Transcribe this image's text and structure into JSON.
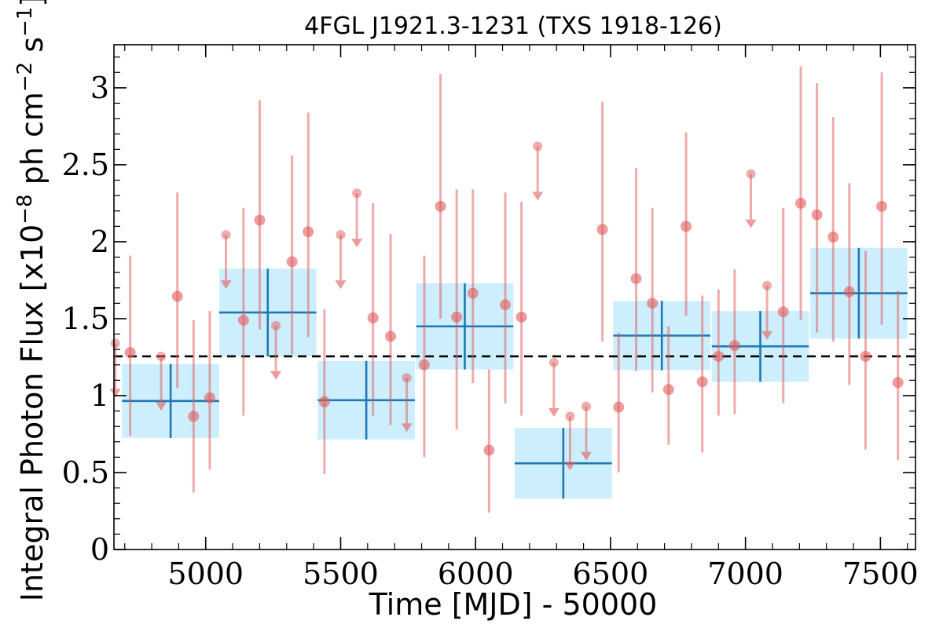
{
  "chart_data": {
    "type": "scatter",
    "title": "4FGL J1921.3-1231 (TXS 1918-126)",
    "xlabel": "Time [MJD] - 50000",
    "ylabel": "Integral Photon Flux [x10",
    "ylabel_exp1": "−8",
    "ylabel_mid": " ph cm",
    "ylabel_exp2": "−2",
    "ylabel_mid2": " s",
    "ylabel_exp3": "−1",
    "ylabel_end": "]",
    "xlim": [
      4660,
      7630
    ],
    "ylim": [
      0,
      3.28
    ],
    "xticks": [
      5000,
      5500,
      6000,
      6500,
      7000,
      7500
    ],
    "yticks": [
      0,
      0.5,
      1,
      1.5,
      2,
      2.5,
      3
    ],
    "ytick_labels": [
      "0",
      "0.5",
      "1",
      "1.5",
      "2",
      "2.5",
      "3"
    ],
    "average_flux": 1.255,
    "colors": {
      "points": "#e05a5a",
      "bins_fill": "#cdeffd",
      "bins_line": "#1f77b4",
      "average_line": "#000000"
    },
    "binned": [
      {
        "x": 4870,
        "xerr": 180,
        "y": 0.965,
        "yerr": 0.24
      },
      {
        "x": 5230,
        "xerr": 180,
        "y": 1.54,
        "yerr": 0.285
      },
      {
        "x": 5595,
        "xerr": 180,
        "y": 0.97,
        "yerr": 0.255
      },
      {
        "x": 5960,
        "xerr": 180,
        "y": 1.45,
        "yerr": 0.28
      },
      {
        "x": 6325,
        "xerr": 180,
        "y": 0.56,
        "yerr": 0.23
      },
      {
        "x": 6690,
        "xerr": 180,
        "y": 1.39,
        "yerr": 0.225
      },
      {
        "x": 7055,
        "xerr": 180,
        "y": 1.32,
        "yerr": 0.23
      },
      {
        "x": 7420,
        "xerr": 180,
        "y": 1.665,
        "yerr": 0.295
      }
    ],
    "points": [
      {
        "x": 4720,
        "y": 1.28,
        "lo": 0.74,
        "hi": 1.91
      },
      {
        "x": 4895,
        "y": 1.645,
        "lo": 1.05,
        "hi": 2.32
      },
      {
        "x": 4955,
        "y": 0.865,
        "lo": 0.37,
        "hi": 1.49
      },
      {
        "x": 5015,
        "y": 0.985,
        "lo": 0.52,
        "hi": 1.55
      },
      {
        "x": 5140,
        "y": 1.49,
        "lo": 0.87,
        "hi": 2.22
      },
      {
        "x": 5200,
        "y": 2.14,
        "lo": 1.43,
        "hi": 2.92
      },
      {
        "x": 5320,
        "y": 1.87,
        "lo": 1.27,
        "hi": 2.56
      },
      {
        "x": 5380,
        "y": 2.065,
        "lo": 1.38,
        "hi": 2.84
      },
      {
        "x": 5440,
        "y": 0.96,
        "lo": 0.49,
        "hi": 1.56
      },
      {
        "x": 5620,
        "y": 1.505,
        "lo": 0.87,
        "hi": 2.25
      },
      {
        "x": 5685,
        "y": 1.385,
        "lo": 0.81,
        "hi": 2.05
      },
      {
        "x": 5810,
        "y": 1.2,
        "lo": 0.6,
        "hi": 1.91
      },
      {
        "x": 5870,
        "y": 2.23,
        "lo": 1.5,
        "hi": 3.09
      },
      {
        "x": 5930,
        "y": 1.51,
        "lo": 0.78,
        "hi": 2.34
      },
      {
        "x": 5990,
        "y": 1.665,
        "lo": 1.08,
        "hi": 2.34
      },
      {
        "x": 6050,
        "y": 0.645,
        "lo": 0.24,
        "hi": 1.17
      },
      {
        "x": 6110,
        "y": 1.59,
        "lo": 0.95,
        "hi": 2.32
      },
      {
        "x": 6170,
        "y": 1.51,
        "lo": 0.87,
        "hi": 2.26
      },
      {
        "x": 6470,
        "y": 2.08,
        "lo": 1.35,
        "hi": 2.91
      },
      {
        "x": 6530,
        "y": 0.925,
        "lo": 0.5,
        "hi": 1.41
      },
      {
        "x": 6595,
        "y": 1.76,
        "lo": 1.16,
        "hi": 2.48
      },
      {
        "x": 6655,
        "y": 1.6,
        "lo": 1.02,
        "hi": 2.22
      },
      {
        "x": 6715,
        "y": 1.04,
        "lo": 0.68,
        "hi": 1.45
      },
      {
        "x": 6780,
        "y": 2.1,
        "lo": 1.52,
        "hi": 2.71
      },
      {
        "x": 6840,
        "y": 1.09,
        "lo": 0.63,
        "hi": 1.65
      },
      {
        "x": 6900,
        "y": 1.255,
        "lo": 0.87,
        "hi": 1.69
      },
      {
        "x": 6960,
        "y": 1.325,
        "lo": 0.88,
        "hi": 1.82
      },
      {
        "x": 7140,
        "y": 1.545,
        "lo": 0.95,
        "hi": 2.22
      },
      {
        "x": 7205,
        "y": 2.25,
        "lo": 1.49,
        "hi": 3.14
      },
      {
        "x": 7265,
        "y": 2.175,
        "lo": 1.41,
        "hi": 3.03
      },
      {
        "x": 7325,
        "y": 2.03,
        "lo": 1.35,
        "hi": 2.81
      },
      {
        "x": 7385,
        "y": 1.675,
        "lo": 1.07,
        "hi": 2.38
      },
      {
        "x": 7445,
        "y": 1.255,
        "lo": 0.65,
        "hi": 1.94
      },
      {
        "x": 7505,
        "y": 2.23,
        "lo": 1.46,
        "hi": 3.1
      },
      {
        "x": 7565,
        "y": 1.085,
        "lo": 0.58,
        "hi": 1.68
      }
    ],
    "upper_limits": [
      {
        "x": 4665,
        "y": 1.34
      },
      {
        "x": 4835,
        "y": 1.255
      },
      {
        "x": 5075,
        "y": 2.045
      },
      {
        "x": 5260,
        "y": 1.455
      },
      {
        "x": 5500,
        "y": 2.045
      },
      {
        "x": 5560,
        "y": 2.315
      },
      {
        "x": 5745,
        "y": 1.115
      },
      {
        "x": 6230,
        "y": 2.62
      },
      {
        "x": 6290,
        "y": 1.215
      },
      {
        "x": 6350,
        "y": 0.865
      },
      {
        "x": 6410,
        "y": 0.93
      },
      {
        "x": 7020,
        "y": 2.44
      },
      {
        "x": 7080,
        "y": 1.715
      }
    ]
  }
}
